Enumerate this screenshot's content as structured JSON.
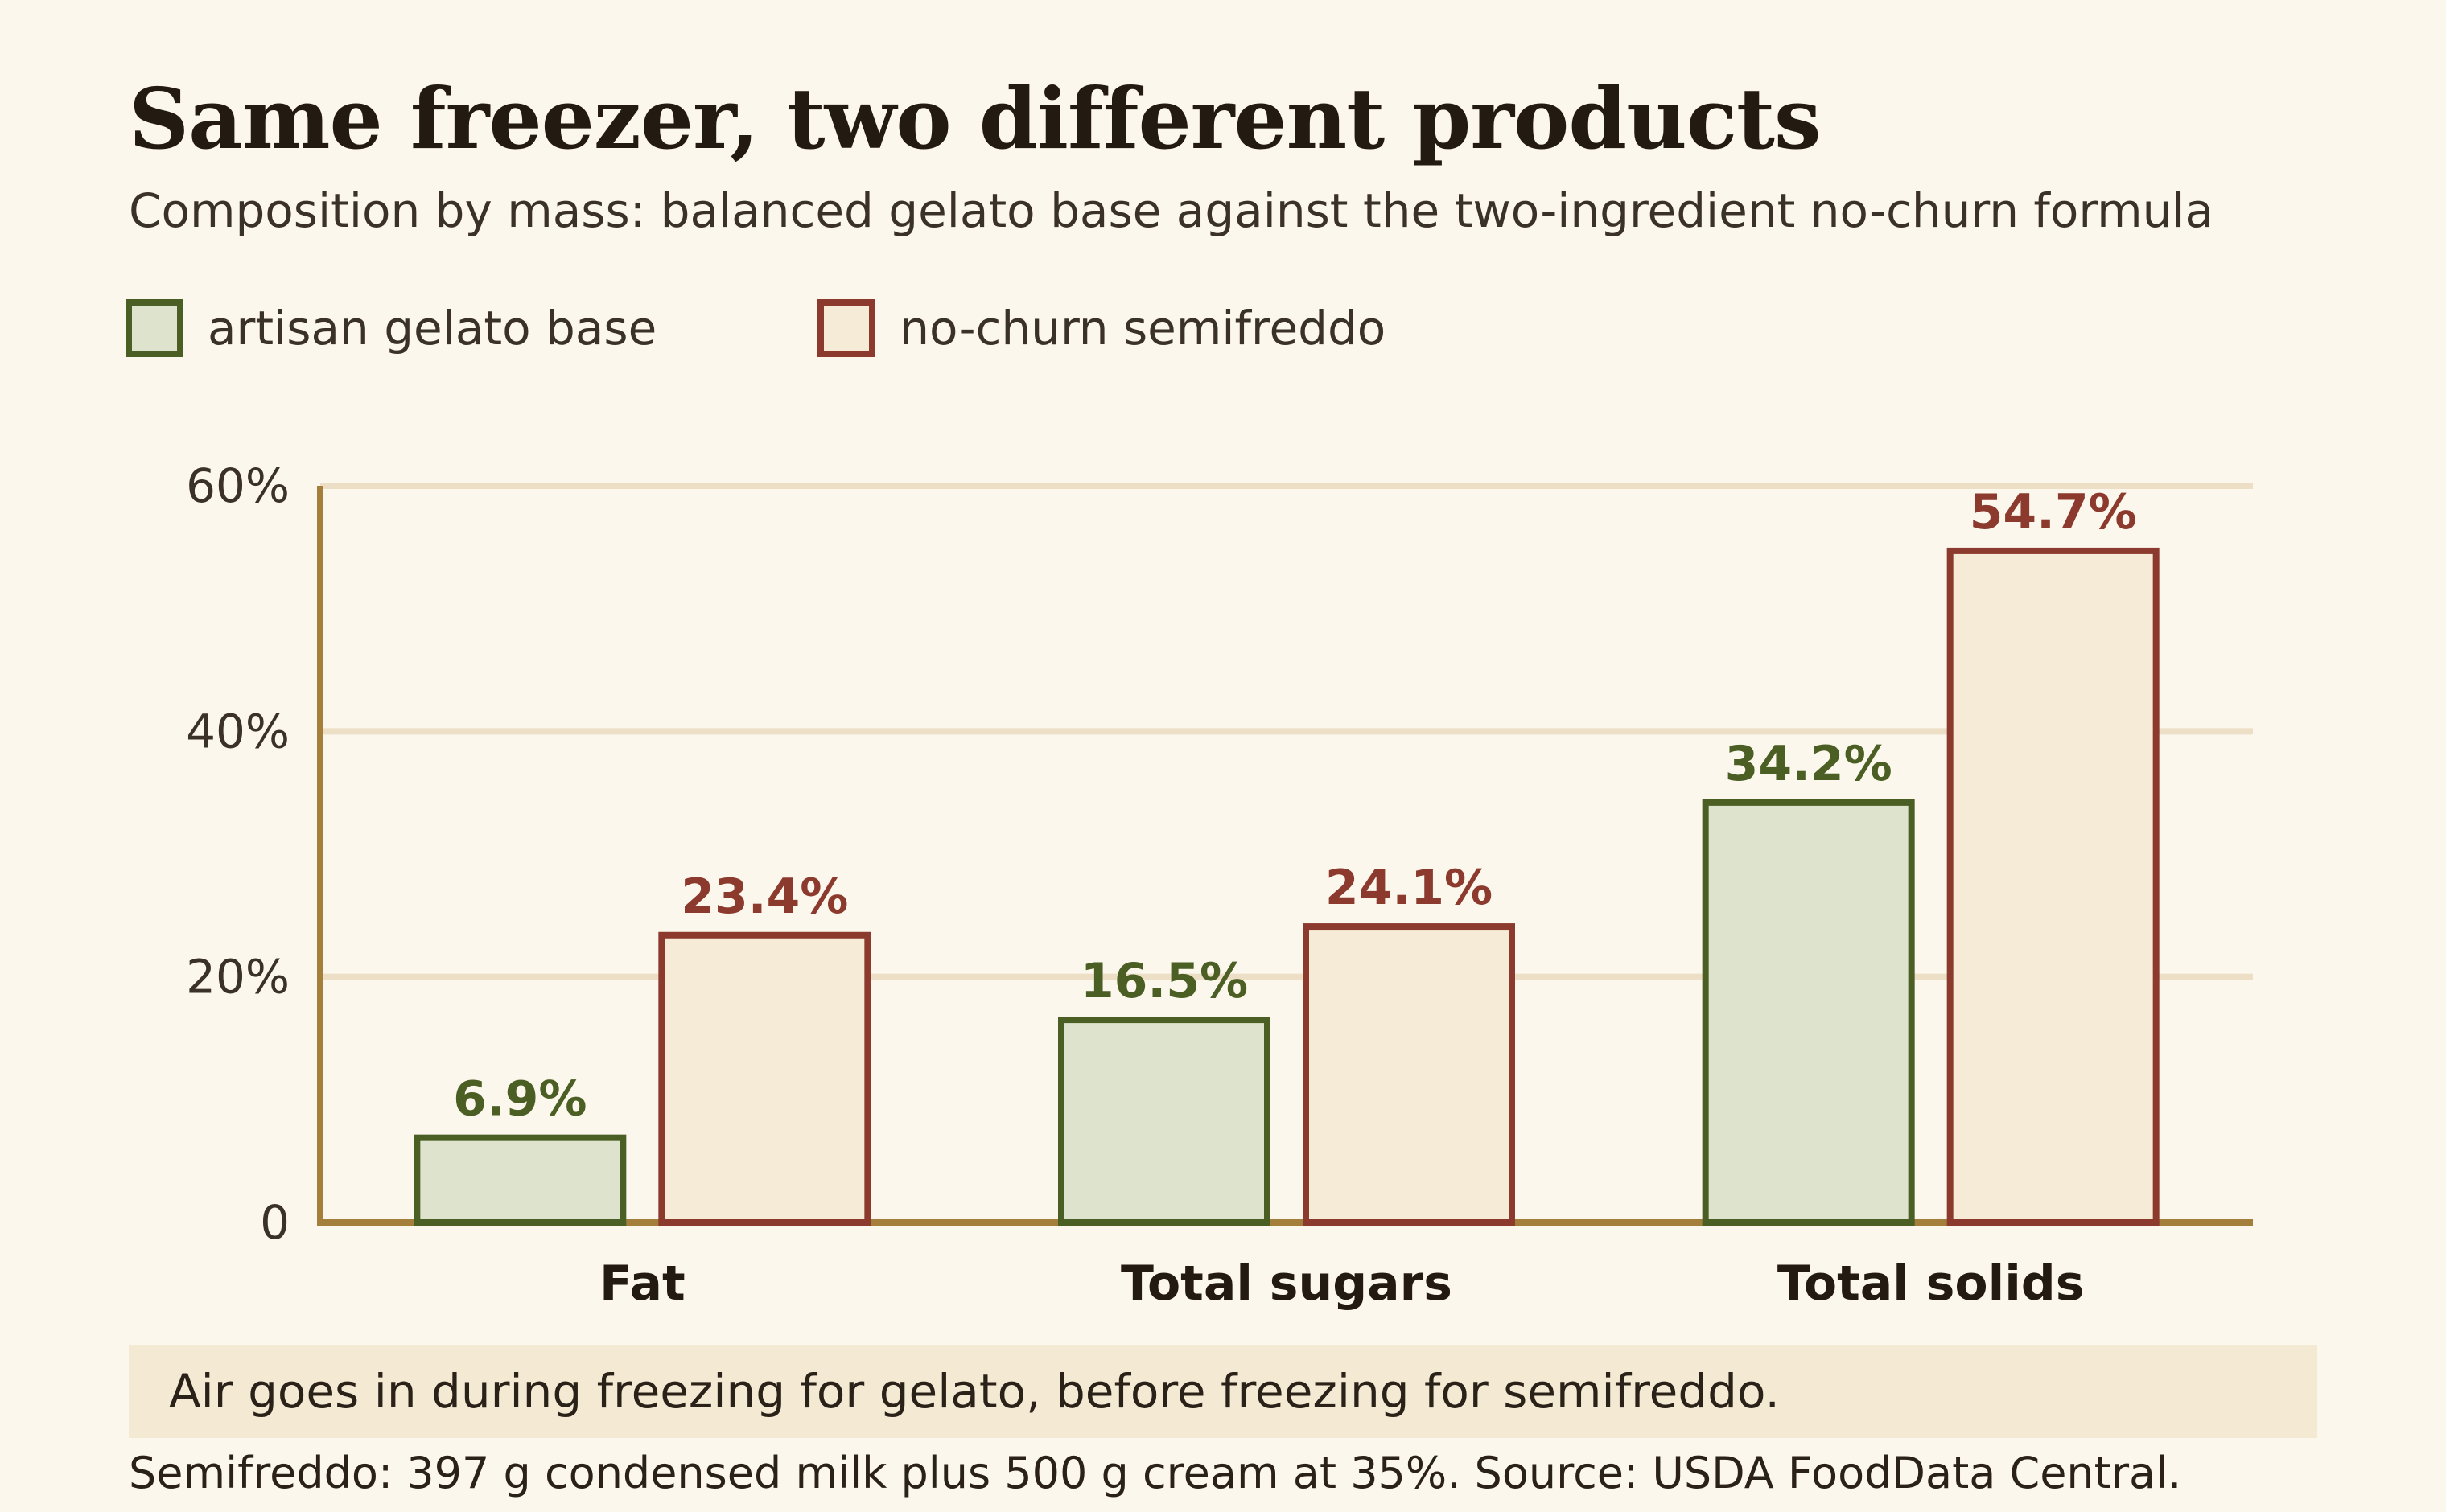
{
  "title": "Same freezer, two different products",
  "subtitle": "Composition by mass: balanced gelato base against the two-ingredient no-churn formula",
  "legend": [
    {
      "label": "artisan gelato base",
      "stroke": "#4b5e23",
      "fill": "#dde3cc"
    },
    {
      "label": "no-churn semifreddo",
      "stroke": "#8c3a2e",
      "fill": "#f6ebd6"
    }
  ],
  "chart_data": {
    "type": "bar",
    "categories": [
      "Fat",
      "Total sugars",
      "Total solids"
    ],
    "series": [
      {
        "name": "artisan gelato base",
        "values": [
          6.9,
          16.5,
          34.2
        ],
        "labels": [
          "6.9%",
          "16.5%",
          "34.2%"
        ]
      },
      {
        "name": "no-churn semifreddo",
        "values": [
          23.4,
          24.1,
          54.7
        ],
        "labels": [
          "23.4%",
          "24.1%",
          "54.7%"
        ]
      }
    ],
    "ylim": [
      0,
      60
    ],
    "yticks": [
      0,
      20,
      40,
      60
    ],
    "ytick_labels": [
      "0",
      "20%",
      "40%",
      "60%"
    ],
    "grid": true,
    "legend_position": "top-left",
    "colors": {
      "gridline": "#ecdfc6",
      "axis": "#a47f3c"
    }
  },
  "note": "Air goes in during freezing for gelato, before freezing for semifreddo.",
  "footer": "Semifreddo: 397 g condensed milk plus 500 g cream at 35%. Source: USDA FoodData Central."
}
